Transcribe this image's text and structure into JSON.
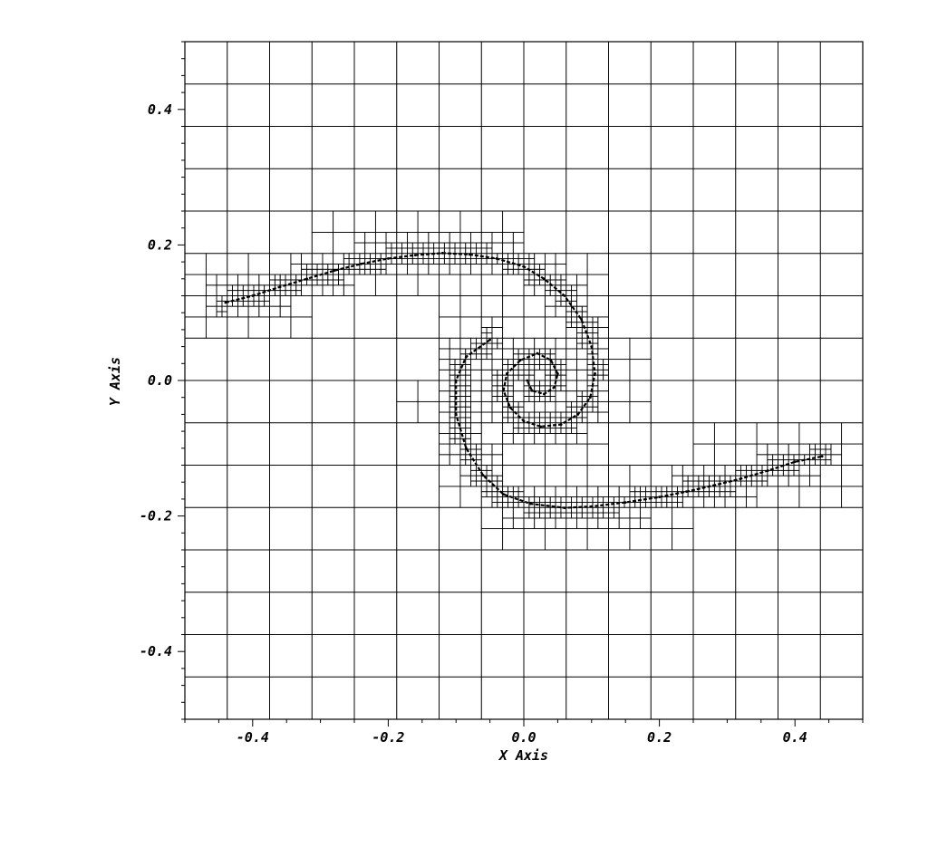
{
  "chart_data": {
    "type": "scatter",
    "title": "",
    "xlabel": "X Axis",
    "ylabel": "Y Axis",
    "xlim": [
      -0.5,
      0.5
    ],
    "ylim": [
      -0.5,
      0.5
    ],
    "x_ticks": [
      {
        "value": -0.4,
        "label": "-0.4"
      },
      {
        "value": -0.2,
        "label": "-0.2"
      },
      {
        "value": 0.0,
        "label": "0.0"
      },
      {
        "value": 0.2,
        "label": "0.2"
      },
      {
        "value": 0.4,
        "label": "0.4"
      }
    ],
    "y_ticks": [
      {
        "value": 0.4,
        "label": "0.4"
      },
      {
        "value": 0.2,
        "label": "0.2"
      },
      {
        "value": 0.0,
        "label": "0.0"
      },
      {
        "value": -0.2,
        "label": "-0.2"
      },
      {
        "value": -0.4,
        "label": "-0.4"
      }
    ],
    "mesh": {
      "description_level": "adaptive quadtree refinement along interface",
      "base_cell_size": 0.0625,
      "base_grid_xlim": [
        -0.5,
        0.5
      ],
      "base_grid_ylim": [
        -0.5,
        0.5
      ],
      "refined_region_x": [
        -0.4375,
        0.4375
      ]
    },
    "series": [
      {
        "points": [
          [
            -0.44,
            0.115
          ],
          [
            -0.4,
            0.125
          ],
          [
            -0.36,
            0.138
          ],
          [
            -0.32,
            0.15
          ],
          [
            -0.28,
            0.162
          ],
          [
            -0.24,
            0.172
          ],
          [
            -0.2,
            0.18
          ],
          [
            -0.16,
            0.185
          ],
          [
            -0.12,
            0.188
          ],
          [
            -0.08,
            0.186
          ],
          [
            -0.04,
            0.18
          ],
          [
            0.0,
            0.168
          ],
          [
            0.03,
            0.15
          ],
          [
            0.06,
            0.125
          ],
          [
            0.085,
            0.09
          ],
          [
            0.1,
            0.05
          ],
          [
            0.105,
            0.01
          ],
          [
            0.098,
            -0.025
          ],
          [
            0.08,
            -0.05
          ],
          [
            0.055,
            -0.065
          ],
          [
            0.025,
            -0.068
          ],
          [
            0.0,
            -0.06
          ],
          [
            -0.02,
            -0.04
          ],
          [
            -0.03,
            -0.015
          ],
          [
            -0.025,
            0.01
          ],
          [
            -0.005,
            0.03
          ],
          [
            0.02,
            0.04
          ],
          [
            0.04,
            0.03
          ],
          [
            0.05,
            0.01
          ],
          [
            0.045,
            -0.01
          ],
          [
            0.03,
            -0.02
          ],
          [
            0.012,
            -0.015
          ],
          [
            0.005,
            0.0
          ],
          [
            -0.05,
            0.06
          ],
          [
            -0.085,
            0.035
          ],
          [
            -0.1,
            0.0
          ],
          [
            -0.1,
            -0.05
          ],
          [
            -0.085,
            -0.1
          ],
          [
            -0.06,
            -0.14
          ],
          [
            -0.03,
            -0.168
          ],
          [
            0.01,
            -0.182
          ],
          [
            0.06,
            -0.188
          ],
          [
            0.1,
            -0.186
          ],
          [
            0.15,
            -0.18
          ],
          [
            0.2,
            -0.172
          ],
          [
            0.24,
            -0.164
          ],
          [
            0.28,
            -0.155
          ],
          [
            0.32,
            -0.145
          ],
          [
            0.36,
            -0.133
          ],
          [
            0.4,
            -0.12
          ],
          [
            0.44,
            -0.112
          ]
        ]
      }
    ]
  }
}
